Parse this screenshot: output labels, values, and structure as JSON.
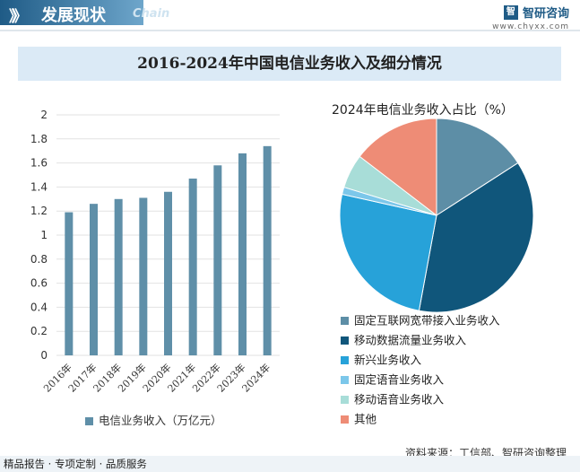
{
  "header": {
    "icon": "》》",
    "title": "发展现状",
    "subtitle": "Chain"
  },
  "brand": {
    "logo": "智",
    "name": "智研咨询",
    "url": "www.chyxx.com"
  },
  "banner": {
    "title": "2016-2024年中国电信业务收入及细分情况"
  },
  "bar_legend": "电信业务收入（万亿元）",
  "pie_title": "2024年电信业务收入占比（%）",
  "source": "资料来源：工信部、智研咨询整理",
  "footer": "精品报告 · 专项定制 · 品质服务",
  "chart_data": [
    {
      "type": "bar",
      "title": "",
      "categories": [
        "2016年",
        "2017年",
        "2018年",
        "2019年",
        "2020年",
        "2021年",
        "2022年",
        "2023年",
        "2024年"
      ],
      "series": [
        {
          "name": "电信业务收入（万亿元）",
          "values": [
            1.19,
            1.26,
            1.3,
            1.31,
            1.36,
            1.47,
            1.58,
            1.68,
            1.74
          ],
          "color": "#5f8fa8"
        }
      ],
      "ylim": [
        0,
        2
      ],
      "yticks": [
        0,
        0.2,
        0.4,
        0.6,
        0.8,
        1,
        1.2,
        1.4,
        1.6,
        1.8,
        2
      ],
      "ytick_labels": [
        "0",
        "0.2",
        "0.4",
        "0.6",
        "0.8",
        "1",
        "1.2",
        "1.4",
        "1.6",
        "1.8",
        "2"
      ],
      "grid": true
    },
    {
      "type": "pie",
      "title": "2024年电信业务收入占比（%）",
      "slices": [
        {
          "label": "固定互联网宽带接入业务收入",
          "value": 15.9,
          "color": "#5d8ea6"
        },
        {
          "label": "移动数据流量业务收入",
          "value": 37.0,
          "color": "#10567b"
        },
        {
          "label": "新兴业务收入",
          "value": 25.6,
          "color": "#27a2d9"
        },
        {
          "label": "固定语音业务收入",
          "value": 1.2,
          "color": "#7cc7ea"
        },
        {
          "label": "移动语音业务收入",
          "value": 5.7,
          "color": "#a8ddd8"
        },
        {
          "label": "其他",
          "value": 14.6,
          "color": "#ee8c76"
        }
      ]
    }
  ]
}
